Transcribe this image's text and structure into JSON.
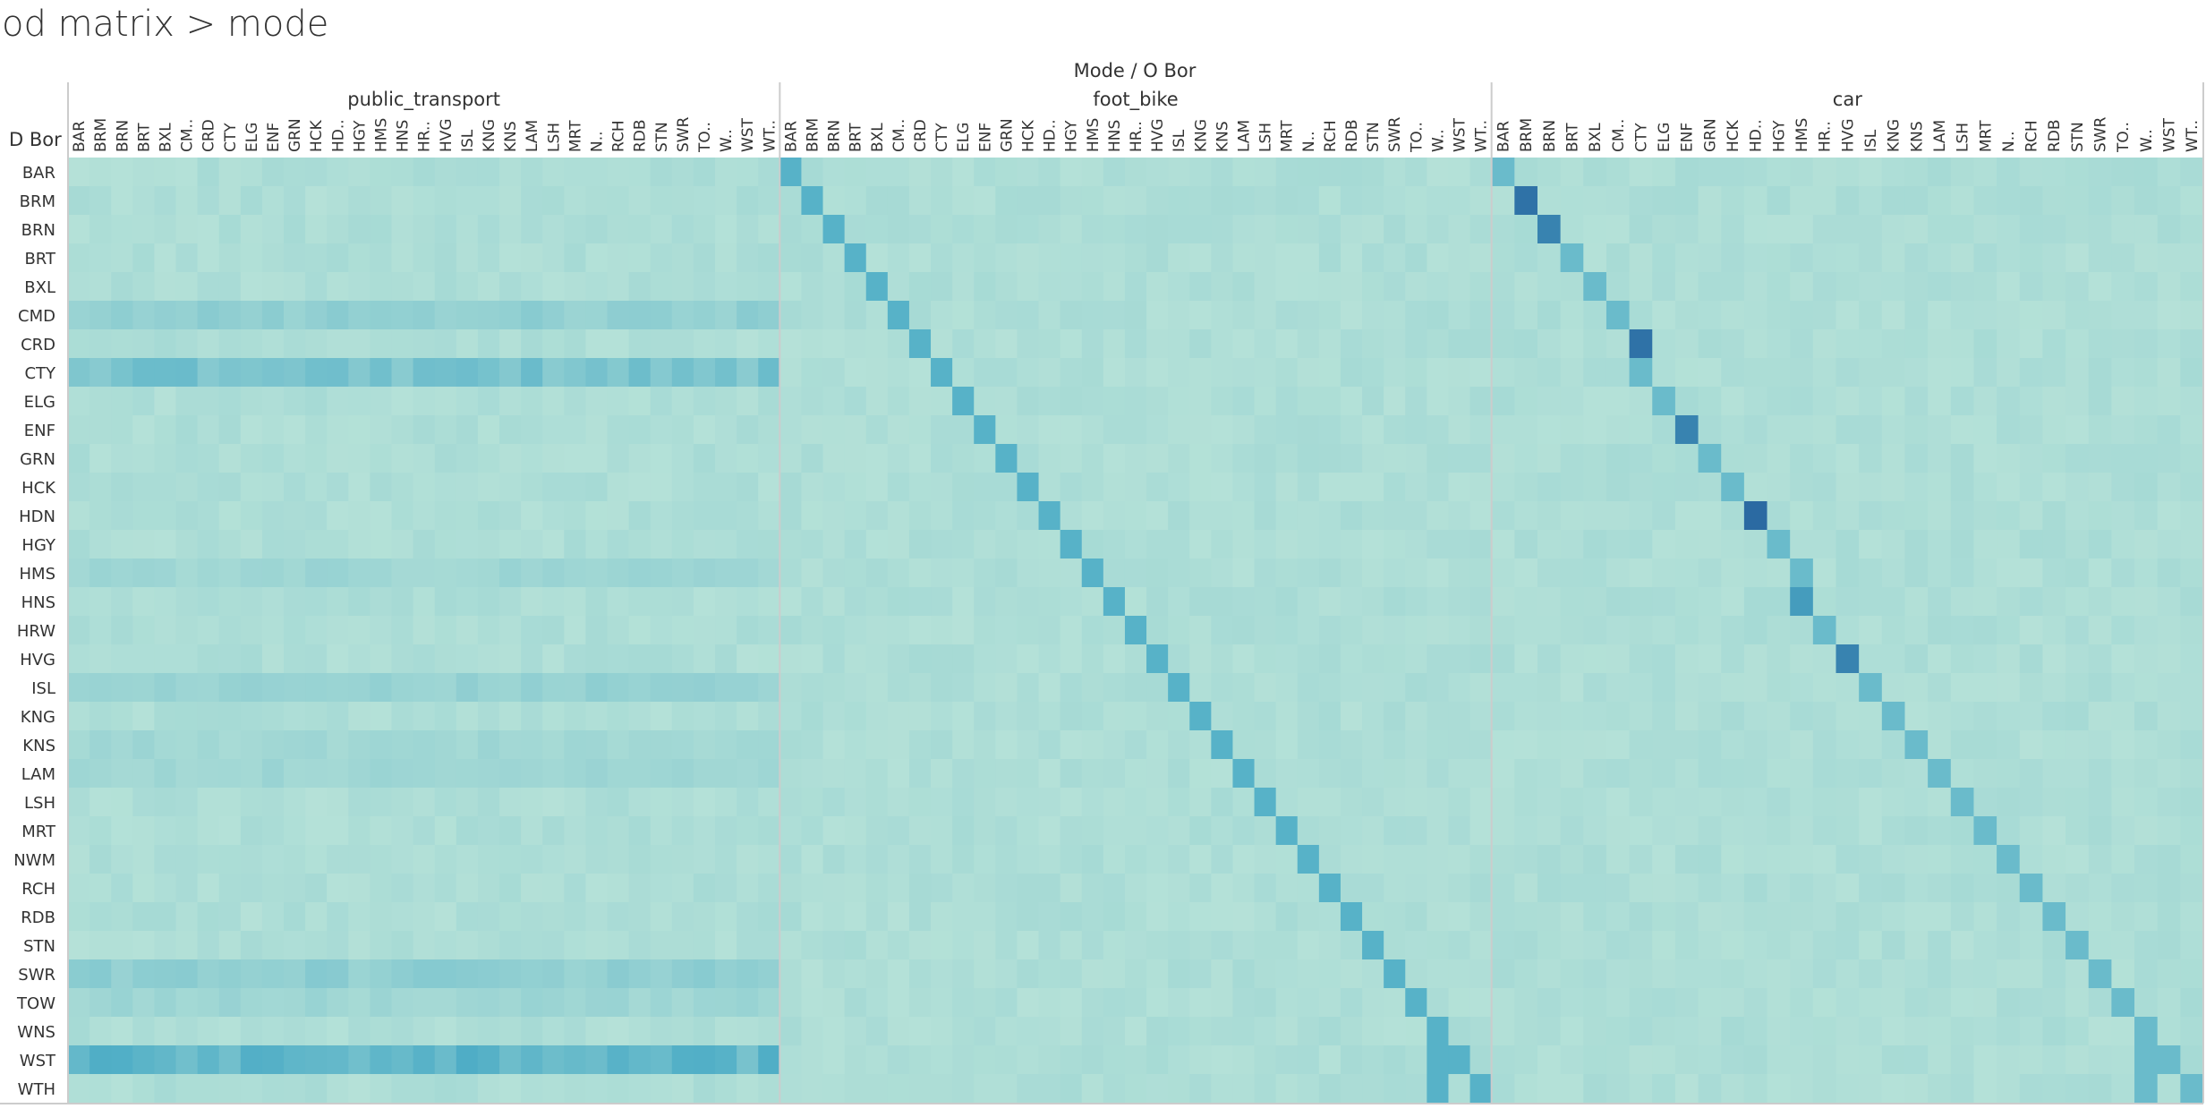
{
  "page": {
    "title": "od matrix > mode"
  },
  "chart_data": {
    "type": "heatmap",
    "title": "od matrix > mode",
    "column_header": "Mode  /  O Bor",
    "row_header": "D Bor",
    "origin_labels": [
      "BAR",
      "BRM",
      "BRN",
      "BRT",
      "BXL",
      "CM..",
      "CRD",
      "CTY",
      "ELG",
      "ENF",
      "GRN",
      "HCK",
      "HD..",
      "HGY",
      "HMS",
      "HNS",
      "HR..",
      "HVG",
      "ISL",
      "KNG",
      "KNS",
      "LAM",
      "LSH",
      "MRT",
      "N..",
      "RCH",
      "RDB",
      "STN",
      "SWR",
      "TO..",
      "W..",
      "WST",
      "WT.."
    ],
    "row_labels": [
      "BAR",
      "BRM",
      "BRN",
      "BRT",
      "BXL",
      "CMD",
      "CRD",
      "CTY",
      "ELG",
      "ENF",
      "GRN",
      "HCK",
      "HDN",
      "HGY",
      "HMS",
      "HNS",
      "HRW",
      "HVG",
      "ISL",
      "KNG",
      "KNS",
      "LAM",
      "LSH",
      "MRT",
      "NWM",
      "RCH",
      "RDB",
      "STN",
      "SWR",
      "TOW",
      "WNS",
      "WST",
      "WTH"
    ],
    "panels": [
      {
        "mode": "public_transport",
        "origin_labels": [
          "BAR",
          "BRM",
          "BRN",
          "BRT",
          "BXL",
          "CM..",
          "CRD",
          "CTY",
          "ELG",
          "ENF",
          "GRN",
          "HCK",
          "HD..",
          "HGY",
          "HMS",
          "HNS",
          "HR..",
          "HVG",
          "ISL",
          "KNG",
          "KNS",
          "LAM",
          "LSH",
          "MRT",
          "N..",
          "RCH",
          "RDB",
          "STN",
          "SWR",
          "TO..",
          "W..",
          "WST",
          "WT.."
        ]
      },
      {
        "mode": "foot_bike",
        "origin_labels": [
          "BAR",
          "BRM",
          "BRN",
          "BRT",
          "BXL",
          "CM..",
          "CRD",
          "CTY",
          "ELG",
          "ENF",
          "GRN",
          "HCK",
          "HD..",
          "HGY",
          "HMS",
          "HNS",
          "HR..",
          "HVG",
          "ISL",
          "KNG",
          "KNS",
          "LAM",
          "LSH",
          "MRT",
          "N..",
          "RCH",
          "RDB",
          "STN",
          "SWR",
          "TO..",
          "W..",
          "WST",
          "WT.."
        ]
      },
      {
        "mode": "car",
        "origin_labels": [
          "BAR",
          "BRM",
          "BRN",
          "BRT",
          "BXL",
          "CM..",
          "CTY",
          "ELG",
          "ENF",
          "GRN",
          "HCK",
          "HD..",
          "HGY",
          "HMS",
          "HR..",
          "HVG",
          "ISL",
          "KNG",
          "KNS",
          "LAM",
          "LSH",
          "MRT",
          "N..",
          "RCH",
          "RDB",
          "STN",
          "SWR",
          "TO..",
          "W..",
          "WST",
          "WT.."
        ]
      }
    ],
    "color_scale": {
      "low": "#bce5d9",
      "mid": "#4eadc6",
      "high": "#2b6aa2"
    },
    "highlights": {
      "public_transport": [
        {
          "row": "CMD",
          "intensity": 0.3
        },
        {
          "row": "CTY",
          "intensity": 0.45
        },
        {
          "row": "ISL",
          "intensity": 0.25
        },
        {
          "row": "LAM",
          "intensity": 0.2
        },
        {
          "row": "SWR",
          "intensity": 0.3
        },
        {
          "row": "TOW",
          "intensity": 0.2
        },
        {
          "row": "WST",
          "intensity": 0.6
        },
        {
          "row": "HMS",
          "intensity": 0.2
        },
        {
          "row": "KNS",
          "intensity": 0.18
        }
      ],
      "foot_bike": [
        {
          "pattern": "diagonal",
          "intensity": 0.55
        }
      ],
      "car": [
        {
          "row": "BRM",
          "col": "BRM",
          "intensity": 0.95
        },
        {
          "row": "BRN",
          "col": "BRN",
          "intensity": 0.85
        },
        {
          "row": "CRD",
          "col": "CTY",
          "intensity": 0.95
        },
        {
          "row": "HDN",
          "col": "HD..",
          "intensity": 1.0
        },
        {
          "row": "ENF",
          "col": "ENF",
          "intensity": 0.85
        },
        {
          "row": "HVG",
          "col": "HVG",
          "intensity": 0.85
        },
        {
          "row": "HNS",
          "col": "HMS",
          "intensity": 0.7
        },
        {
          "pattern": "diagonal",
          "intensity": 0.45
        }
      ]
    }
  }
}
